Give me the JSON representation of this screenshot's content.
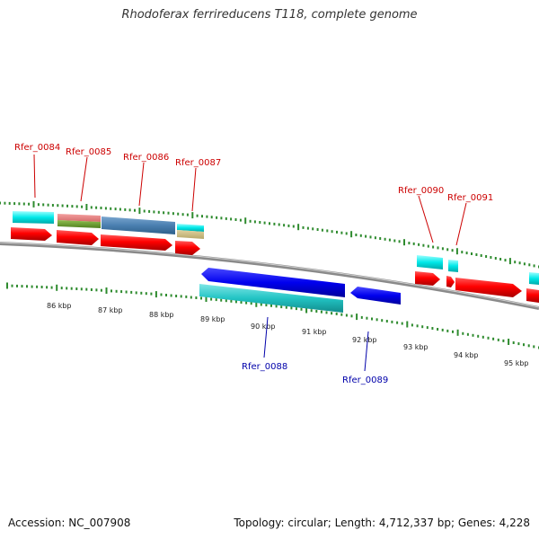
{
  "title": "Rhodoferax ferrireducens T118, complete genome",
  "footer": {
    "accession": "Accession: NC_007908",
    "summary": "Topology: circular; Length: 4,712,337 bp; Genes: 4,228"
  },
  "colors": {
    "label_forward": "#cc0000",
    "label_reverse": "#0000aa",
    "backbone": "#8a8a8a",
    "tick": "#2e8b2e"
  },
  "scale_labels": [
    "86 kbp",
    "87 kbp",
    "88 kbp",
    "89 kbp",
    "90 kbp",
    "91 kbp",
    "92 kbp",
    "93 kbp",
    "94 kbp",
    "95 kbp"
  ],
  "gene_labels": {
    "forward": [
      "Rfer_0084",
      "Rfer_0085",
      "Rfer_0086",
      "Rfer_0087",
      "Rfer_0090",
      "Rfer_0091"
    ],
    "reverse": [
      "Rfer_0088",
      "Rfer_0089"
    ]
  }
}
